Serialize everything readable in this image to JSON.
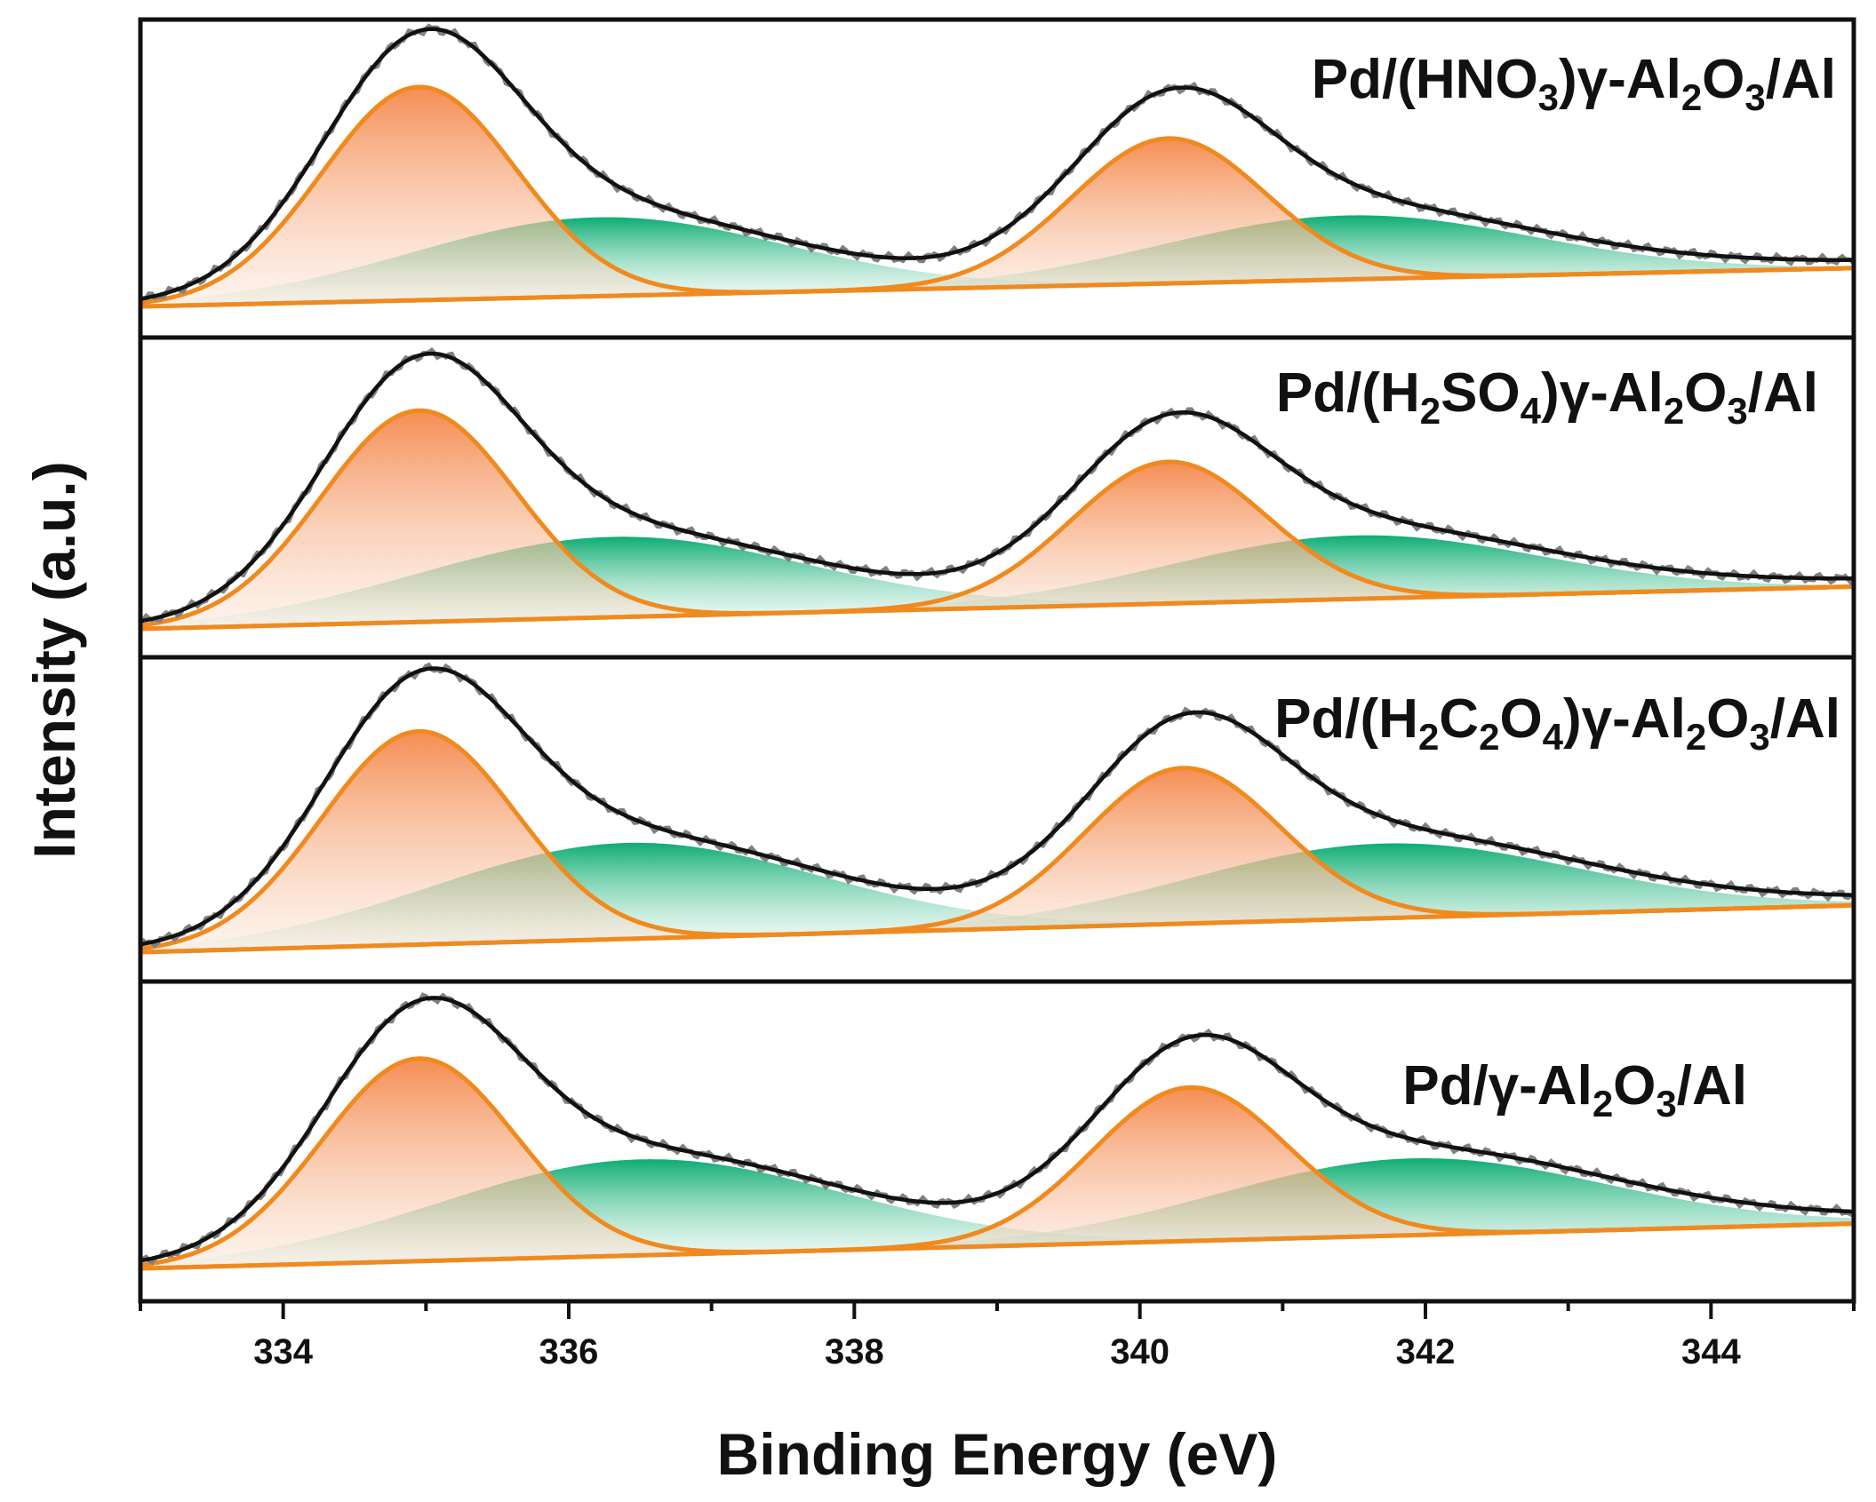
{
  "chart_data": {
    "type": "line",
    "subtype": "stacked XPS Pd 3d spectra with Gaussian peak deconvolution",
    "xlabel": "Binding Energy (eV)",
    "ylabel": "Intensity (a.u.)",
    "xlim": [
      333,
      345
    ],
    "x_ticks": [
      334,
      336,
      338,
      340,
      342,
      344
    ],
    "x_tick_labels": [
      "334",
      "336",
      "338",
      "340",
      "342",
      "344"
    ],
    "grid": false,
    "legend": "per-panel sample label, top-right",
    "colors": {
      "raw": "#808080",
      "envelope": "#111111",
      "pd0_component": "#f08a1e",
      "pd0_fill_top": "#f4874a",
      "pd2_component": "#00a86b",
      "background": "#bdbdbd"
    },
    "panels": [
      {
        "label": {
          "a": "Pd/(HNO",
          "b": "3",
          "c": ")γ-Al",
          "d": "2",
          "e": "O",
          "f": "3",
          "g": "/Al"
        },
        "background": [
          0.0,
          0.18
        ],
        "pd0_3d52": {
          "center": 334.95,
          "height": 1.0,
          "sigma": 0.68
        },
        "pd0_3d32": {
          "center": 340.2,
          "height": 0.68,
          "sigma": 0.68
        },
        "pd2_3d52": {
          "center": 336.2,
          "height": 0.37,
          "sigma": 1.3
        },
        "pd2_3d32": {
          "center": 341.45,
          "height": 0.3,
          "sigma": 1.3
        },
        "tail_amp": 0.2
      },
      {
        "label": {
          "a": "Pd/(H",
          "b": "2",
          "c": "SO",
          "d": "4",
          "e": ")γ-Al",
          "f": "2",
          "g": "O",
          "h": "3",
          "i": "/Al"
        },
        "background": [
          0.0,
          0.2
        ],
        "pd0_3d52": {
          "center": 334.95,
          "height": 1.0,
          "sigma": 0.68
        },
        "pd0_3d32": {
          "center": 340.2,
          "height": 0.67,
          "sigma": 0.68
        },
        "pd2_3d52": {
          "center": 336.3,
          "height": 0.38,
          "sigma": 1.35
        },
        "pd2_3d32": {
          "center": 341.5,
          "height": 0.3,
          "sigma": 1.3
        },
        "tail_amp": 0.2
      },
      {
        "label": {
          "a": "Pd/(H",
          "b": "2",
          "c": "C",
          "d": "2",
          "e": "O",
          "f": "4",
          "g": ")γ-Al",
          "h": "2",
          "i": "O",
          "j": "3",
          "k": "/Al"
        },
        "background": [
          0.0,
          0.22
        ],
        "pd0_3d52": {
          "center": 334.95,
          "height": 1.0,
          "sigma": 0.68
        },
        "pd0_3d32": {
          "center": 340.3,
          "height": 0.73,
          "sigma": 0.68
        },
        "pd2_3d52": {
          "center": 336.4,
          "height": 0.45,
          "sigma": 1.35
        },
        "pd2_3d32": {
          "center": 341.7,
          "height": 0.35,
          "sigma": 1.35
        },
        "tail_amp": 0.2
      },
      {
        "label": {
          "a": "Pd/γ-Al",
          "b": "2",
          "c": "O",
          "d": "3",
          "e": "/Al"
        },
        "background": [
          0.0,
          0.21
        ],
        "pd0_3d52": {
          "center": 334.95,
          "height": 0.95,
          "sigma": 0.68
        },
        "pd0_3d32": {
          "center": 340.35,
          "height": 0.72,
          "sigma": 0.68
        },
        "pd2_3d52": {
          "center": 336.5,
          "height": 0.45,
          "sigma": 1.4
        },
        "pd2_3d32": {
          "center": 341.9,
          "height": 0.36,
          "sigma": 1.35
        },
        "tail_amp": 0.2
      }
    ]
  }
}
